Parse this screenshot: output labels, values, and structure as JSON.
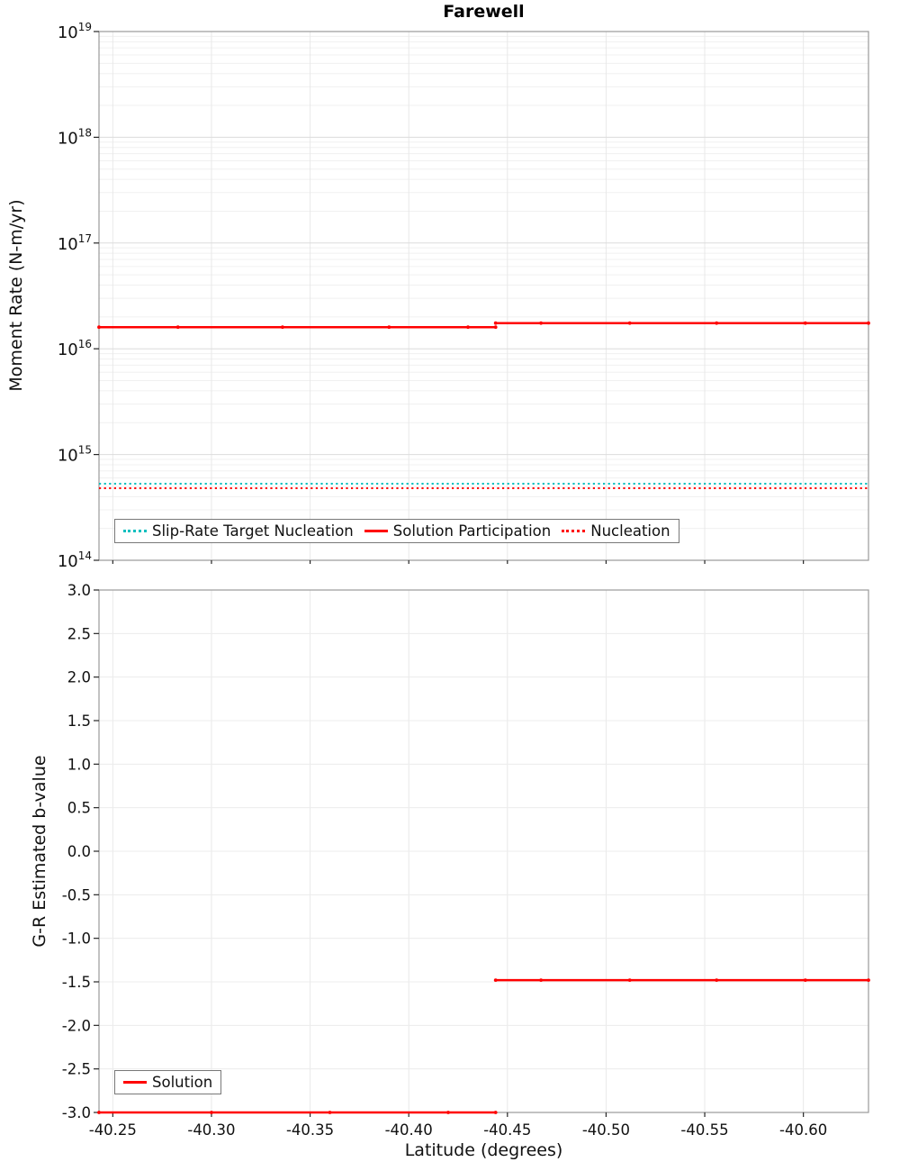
{
  "title": "Farewell",
  "axes": {
    "x": {
      "label": "Latitude (degrees)",
      "lim": [
        -40.243,
        -40.633
      ],
      "ticks": [
        {
          "v": -40.25,
          "label": "-40.25"
        },
        {
          "v": -40.3,
          "label": "-40.30"
        },
        {
          "v": -40.35,
          "label": "-40.35"
        },
        {
          "v": -40.4,
          "label": "-40.40"
        },
        {
          "v": -40.45,
          "label": "-40.45"
        },
        {
          "v": -40.5,
          "label": "-40.50"
        },
        {
          "v": -40.55,
          "label": "-40.55"
        },
        {
          "v": -40.6,
          "label": "-40.60"
        }
      ]
    }
  },
  "chart_data": [
    {
      "type": "line",
      "title": "Farewell",
      "ylabel": "Moment Rate (N-m/yr)",
      "yscale": "log",
      "ylim": [
        100000000000000.0,
        1e+19
      ],
      "grid": true,
      "legend": {
        "position": "lower left"
      },
      "yticks": [
        {
          "v": 1e+19,
          "exp": "19"
        },
        {
          "v": 1e+18,
          "exp": "18"
        },
        {
          "v": 1e+17,
          "exp": "17"
        },
        {
          "v": 1e+16,
          "exp": "16"
        },
        {
          "v": 1000000000000000.0,
          "exp": "15"
        },
        {
          "v": 100000000000000.0,
          "exp": "14"
        }
      ],
      "series": [
        {
          "name": "Slip-Rate Target Nucleation",
          "color": "#00bfbf",
          "style": "dotted",
          "width": 2,
          "markers": false,
          "segments": [
            {
              "x": [
                -40.243,
                -40.633
              ],
              "y": [
                530000000000000.0,
                530000000000000.0
              ]
            }
          ]
        },
        {
          "name": "Solution Participation",
          "color": "#ff0000",
          "style": "solid",
          "width": 2.5,
          "markers": true,
          "segments": [
            {
              "x": [
                -40.243,
                -40.283,
                -40.336,
                -40.39,
                -40.43,
                -40.444
              ],
              "y": [
                1.6e+16,
                1.6e+16,
                1.6e+16,
                1.6e+16,
                1.6e+16,
                1.6e+16
              ]
            },
            {
              "x": [
                -40.444,
                -40.467,
                -40.512,
                -40.556,
                -40.601,
                -40.633
              ],
              "y": [
                1.75e+16,
                1.75e+16,
                1.75e+16,
                1.75e+16,
                1.75e+16,
                1.75e+16
              ]
            }
          ]
        },
        {
          "name": "Nucleation",
          "color": "#ff0000",
          "style": "dotted",
          "width": 2,
          "markers": false,
          "segments": [
            {
              "x": [
                -40.243,
                -40.633
              ],
              "y": [
                480000000000000.0,
                480000000000000.0
              ]
            }
          ]
        }
      ]
    },
    {
      "type": "line",
      "xlabel": "Latitude (degrees)",
      "ylabel": "G-R Estimated b-value",
      "yscale": "linear",
      "ylim": [
        -3.0,
        3.0
      ],
      "grid": true,
      "legend": {
        "position": "lower left"
      },
      "yticks": [
        {
          "v": 3.0,
          "label": "3.0"
        },
        {
          "v": 2.5,
          "label": "2.5"
        },
        {
          "v": 2.0,
          "label": "2.0"
        },
        {
          "v": 1.5,
          "label": "1.5"
        },
        {
          "v": 1.0,
          "label": "1.0"
        },
        {
          "v": 0.5,
          "label": "0.5"
        },
        {
          "v": 0.0,
          "label": "0.0"
        },
        {
          "v": -0.5,
          "label": "-0.5"
        },
        {
          "v": -1.0,
          "label": "-1.0"
        },
        {
          "v": -1.5,
          "label": "-1.5"
        },
        {
          "v": -2.0,
          "label": "-2.0"
        },
        {
          "v": -2.5,
          "label": "-2.5"
        },
        {
          "v": -3.0,
          "label": "-3.0"
        }
      ],
      "series": [
        {
          "name": "Solution",
          "color": "#ff0000",
          "style": "solid",
          "width": 2.5,
          "markers": true,
          "segments": [
            {
              "x": [
                -40.243,
                -40.3,
                -40.36,
                -40.42,
                -40.444
              ],
              "y": [
                -3.0,
                -3.0,
                -3.0,
                -3.0,
                -3.0
              ]
            },
            {
              "x": [
                -40.444,
                -40.467,
                -40.512,
                -40.556,
                -40.601,
                -40.633
              ],
              "y": [
                -1.48,
                -1.48,
                -1.48,
                -1.48,
                -1.48,
                -1.48
              ]
            }
          ]
        }
      ]
    }
  ]
}
